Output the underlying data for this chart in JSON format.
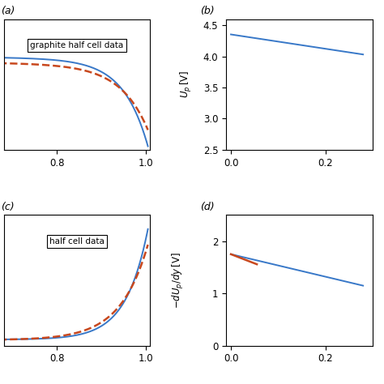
{
  "bg_color": "#ffffff",
  "panel_a": {
    "label": "(a)",
    "legend_text": "graphite half cell data",
    "x_range": [
      0.68,
      1.01
    ],
    "x_ticks": [
      0.8,
      1.0
    ],
    "y_range": [
      -0.02,
      0.1
    ],
    "blue_line_color": "#3878c8",
    "red_line_color": "#c8481e",
    "blue_lw": 1.4,
    "red_lw": 1.8
  },
  "panel_b": {
    "label": "(b)",
    "ylabel": "$U_p\\,\\mathrm{[V]}$",
    "x_range": [
      -0.01,
      0.3
    ],
    "x_ticks": [
      0.0,
      0.2
    ],
    "y_range": [
      2.5,
      4.6
    ],
    "y_ticks": [
      2.5,
      3.0,
      3.5,
      4.0,
      4.5
    ],
    "blue_line_color": "#3878c8",
    "blue_lw": 1.4
  },
  "panel_c": {
    "label": "(c)",
    "legend_text": "half cell data",
    "x_range": [
      0.68,
      1.01
    ],
    "x_ticks": [
      0.8,
      1.0
    ],
    "y_range": [
      -0.1,
      2.5
    ],
    "blue_line_color": "#3878c8",
    "red_line_color": "#c8481e",
    "blue_lw": 1.4,
    "red_lw": 1.8
  },
  "panel_d": {
    "label": "(d)",
    "ylabel": "$-dU_p/dy\\,\\mathrm{[V]}$",
    "x_range": [
      -0.01,
      0.3
    ],
    "x_ticks": [
      0.0,
      0.2
    ],
    "y_range": [
      0.0,
      2.5
    ],
    "y_ticks": [
      0,
      1,
      2
    ],
    "blue_line_color": "#3878c8",
    "red_line_color": "#c8481e",
    "blue_lw": 1.4,
    "red_lw": 1.8
  }
}
